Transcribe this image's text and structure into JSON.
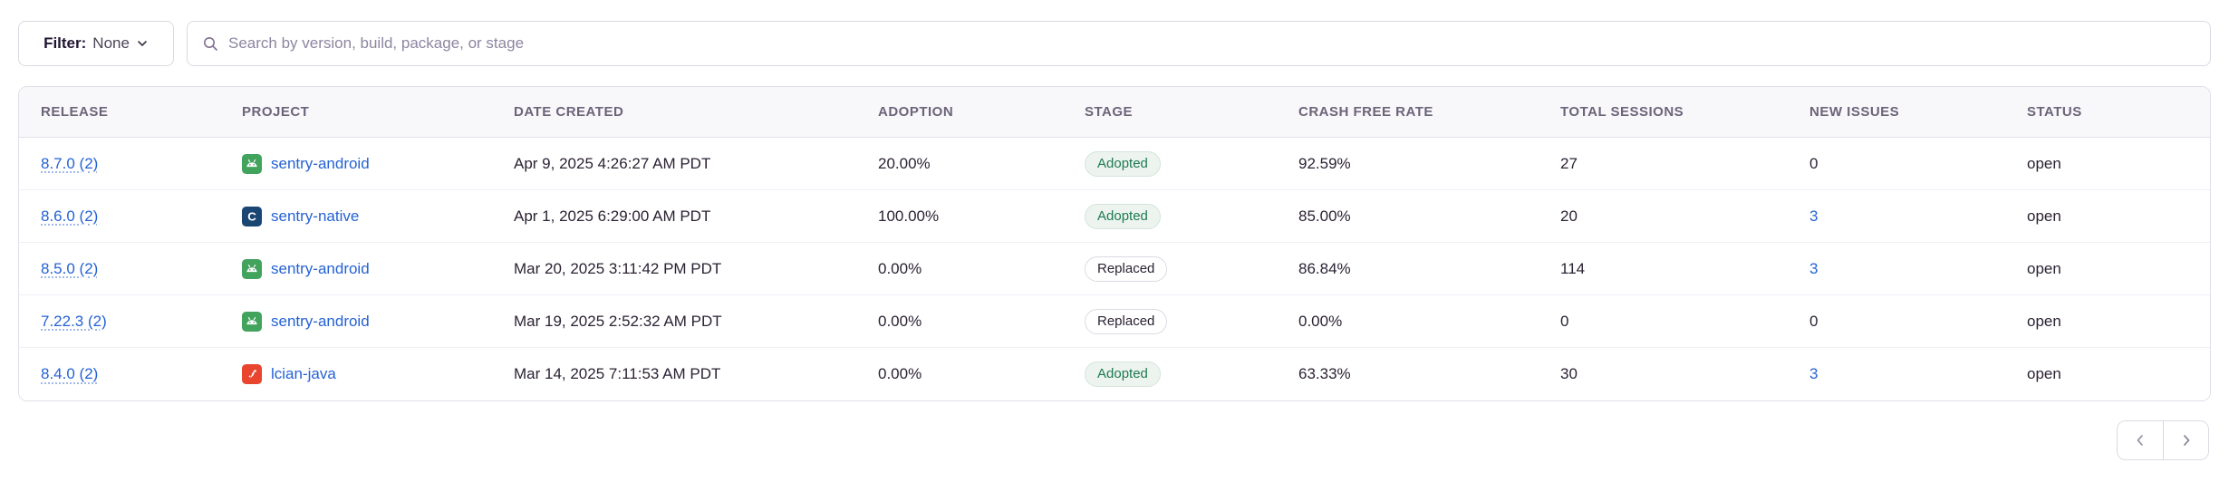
{
  "filter_bar": {
    "filter_label": "Filter:",
    "filter_value": "None",
    "filter_chevron_icon": "chevron-down-icon",
    "search_icon": "search-icon",
    "search_placeholder": "Search by version, build, package, or stage",
    "search_value": ""
  },
  "table": {
    "headers": [
      "RELEASE",
      "PROJECT",
      "DATE CREATED",
      "ADOPTION",
      "STAGE",
      "CRASH FREE RATE",
      "TOTAL SESSIONS",
      "NEW ISSUES",
      "STATUS"
    ],
    "rows": [
      {
        "release": "8.7.0 (2)",
        "project": "sentry-android",
        "platform_icon": "android-icon",
        "date_created": "Apr 9, 2025 4:26:27 AM PDT",
        "adoption": "20.00%",
        "stage": "Adopted",
        "crash_free_rate": "92.59%",
        "total_sessions": "27",
        "new_issues": "0",
        "new_issues_is_link": false,
        "status": "open"
      },
      {
        "release": "8.6.0 (2)",
        "project": "sentry-native",
        "platform_icon": "c-icon",
        "date_created": "Apr 1, 2025 6:29:00 AM PDT",
        "adoption": "100.00%",
        "stage": "Adopted",
        "crash_free_rate": "85.00%",
        "total_sessions": "20",
        "new_issues": "3",
        "new_issues_is_link": true,
        "status": "open"
      },
      {
        "release": "8.5.0 (2)",
        "project": "sentry-android",
        "platform_icon": "android-icon",
        "date_created": "Mar 20, 2025 3:11:42 PM PDT",
        "adoption": "0.00%",
        "stage": "Replaced",
        "crash_free_rate": "86.84%",
        "total_sessions": "114",
        "new_issues": "3",
        "new_issues_is_link": true,
        "status": "open"
      },
      {
        "release": "7.22.3 (2)",
        "project": "sentry-android",
        "platform_icon": "android-icon",
        "date_created": "Mar 19, 2025 2:52:32 AM PDT",
        "adoption": "0.00%",
        "stage": "Replaced",
        "crash_free_rate": "0.00%",
        "total_sessions": "0",
        "new_issues": "0",
        "new_issues_is_link": false,
        "status": "open"
      },
      {
        "release": "8.4.0 (2)",
        "project": "lcian-java",
        "platform_icon": "java-icon",
        "date_created": "Mar 14, 2025 7:11:53 AM PDT",
        "adoption": "0.00%",
        "stage": "Adopted",
        "crash_free_rate": "63.33%",
        "total_sessions": "30",
        "new_issues": "3",
        "new_issues_is_link": true,
        "status": "open"
      }
    ]
  },
  "pagination": {
    "prev_icon": "chevron-left-icon",
    "next_icon": "chevron-right-icon"
  },
  "colors": {
    "link_blue": "#2562d4",
    "adopted_text": "#1e7a50",
    "adopted_bg": "#edf4f0",
    "replaced_border": "#ddd9e2",
    "android_green": "#42a35d",
    "c_navy": "#1a4674",
    "java_red": "#e8442e",
    "header_bg": "#f8f7fa",
    "header_text": "#6c6479",
    "body_text": "#2b2233",
    "border": "#dcd8e1",
    "icon_gray": "#8a8496"
  }
}
